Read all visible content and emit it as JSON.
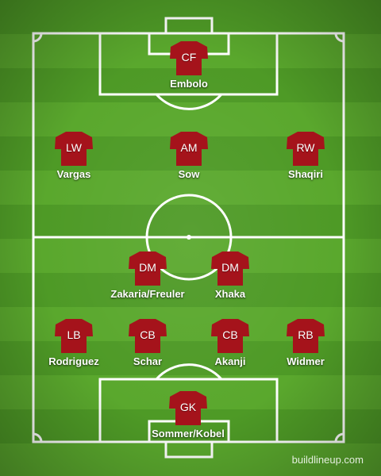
{
  "colors": {
    "shirt": "#a5131b",
    "lines": "#ffffff",
    "grass_dark": "#4e9a26",
    "grass_light": "#5aa82d"
  },
  "icons": {
    "shirt": "jersey-icon"
  },
  "players": {
    "gk": {
      "pos": "GK",
      "name": "Sommer/Kobel"
    },
    "lb": {
      "pos": "LB",
      "name": "Rodriguez"
    },
    "cb1": {
      "pos": "CB",
      "name": "Schar"
    },
    "cb2": {
      "pos": "CB",
      "name": "Akanji"
    },
    "rb": {
      "pos": "RB",
      "name": "Widmer"
    },
    "dm1": {
      "pos": "DM",
      "name": "Zakaria/Freuler"
    },
    "dm2": {
      "pos": "DM",
      "name": "Xhaka"
    },
    "lw": {
      "pos": "LW",
      "name": "Vargas"
    },
    "am": {
      "pos": "AM",
      "name": "Sow"
    },
    "rw": {
      "pos": "RW",
      "name": "Shaqiri"
    },
    "cf": {
      "pos": "CF",
      "name": "Embolo"
    }
  },
  "watermark": "buildlineup.com"
}
